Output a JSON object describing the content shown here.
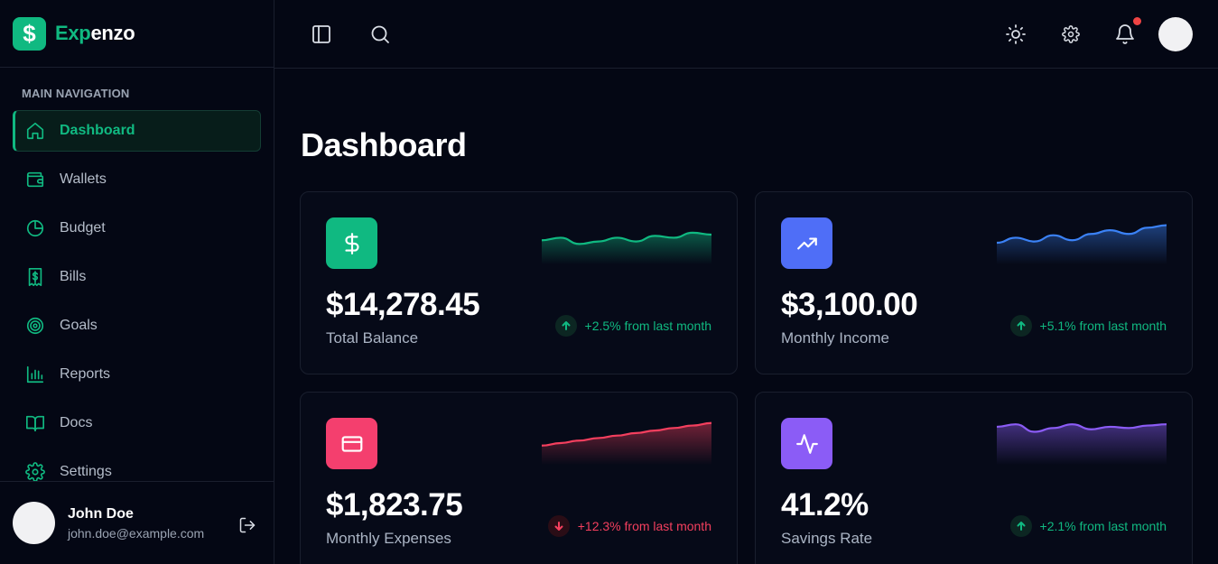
{
  "brand": {
    "name_part1": "Exp",
    "name_part2": "enzo",
    "logo_glyph": "$",
    "color": "#10b981"
  },
  "sidebar": {
    "heading": "MAIN NAVIGATION",
    "items": [
      {
        "label": "Dashboard",
        "icon": "home-icon",
        "active": true
      },
      {
        "label": "Wallets",
        "icon": "wallet-icon"
      },
      {
        "label": "Budget",
        "icon": "pie-chart-icon"
      },
      {
        "label": "Bills",
        "icon": "receipt-icon"
      },
      {
        "label": "Goals",
        "icon": "target-icon"
      },
      {
        "label": "Reports",
        "icon": "bar-chart-icon"
      },
      {
        "label": "Docs",
        "icon": "book-icon"
      },
      {
        "label": "Settings",
        "icon": "gear-icon"
      }
    ]
  },
  "user": {
    "name": "John Doe",
    "email": "john.doe@example.com"
  },
  "topbar": {
    "icons": [
      "sidebar-toggle-icon",
      "search-icon",
      "sun-icon",
      "gear-icon",
      "bell-icon"
    ],
    "notification_dot_color": "#ef4444"
  },
  "page": {
    "title": "Dashboard"
  },
  "cards": [
    {
      "value": "$14,278.45",
      "label": "Total Balance",
      "trend": "+2.5% from last month",
      "trend_dir": "up",
      "icon": "dollar-icon",
      "icon_color": "#10b981",
      "spark_color": "#10b981",
      "spark": [
        40,
        44,
        34,
        38,
        44,
        38,
        47,
        44,
        52,
        49
      ]
    },
    {
      "value": "$3,100.00",
      "label": "Monthly Income",
      "trend": "+5.1% from last month",
      "trend_dir": "up",
      "icon": "trending-up-icon",
      "icon_color": "#4f6ef7",
      "spark_color": "#3b82f6",
      "spark": [
        36,
        44,
        38,
        48,
        40,
        50,
        56,
        50,
        60,
        64
      ]
    },
    {
      "value": "$1,823.75",
      "label": "Monthly Expenses",
      "trend": "+12.3% from last month",
      "trend_dir": "down",
      "icon": "credit-card-icon",
      "icon_color": "#f43f6e",
      "spark_color": "#f43f5e",
      "spark": [
        32,
        36,
        40,
        44,
        48,
        52,
        56,
        60,
        64,
        68
      ]
    },
    {
      "value": "41.2%",
      "label": "Savings Rate",
      "trend": "+2.1% from last month",
      "trend_dir": "up",
      "icon": "activity-icon",
      "icon_color": "#8b5cf6",
      "spark_color": "#8b5cf6",
      "spark": [
        62,
        66,
        54,
        60,
        66,
        58,
        62,
        60,
        64,
        66
      ]
    }
  ]
}
